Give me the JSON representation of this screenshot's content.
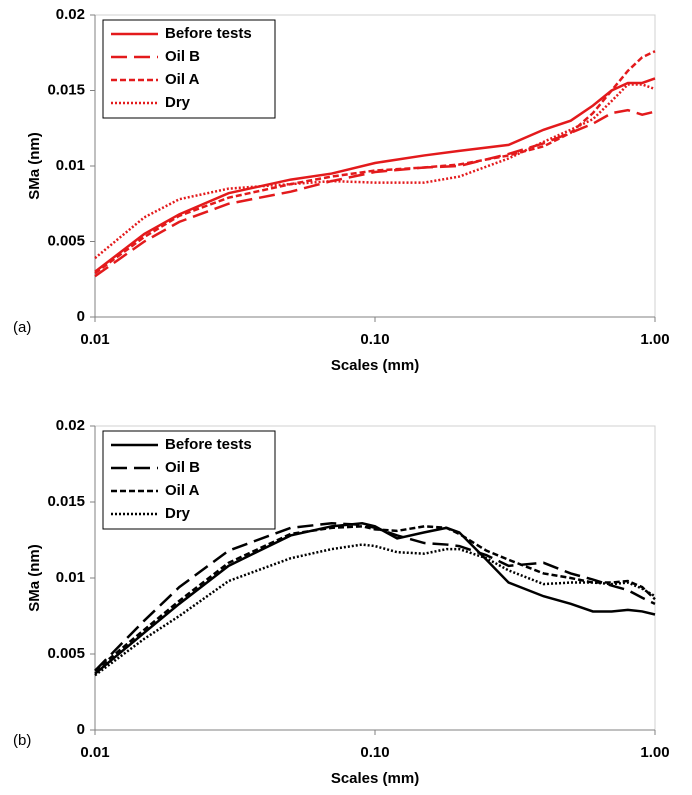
{
  "chart_data": [
    {
      "type": "line",
      "panel_label": "(a)",
      "x_label": "Scales (mm)",
      "y_label": "SMa (nm)",
      "x_scale": "log",
      "legend": "top-left",
      "grid": false,
      "x": [
        0.01,
        0.015,
        0.02,
        0.03,
        0.05,
        0.07,
        0.1,
        0.15,
        0.2,
        0.3,
        0.4,
        0.5,
        0.6,
        0.7,
        0.8,
        0.9,
        1.0
      ],
      "series": [
        {
          "name": "Before tests",
          "color": "#e31a1c",
          "style": "solid",
          "values": [
            0.003,
            0.0055,
            0.0068,
            0.0082,
            0.0091,
            0.0095,
            0.0102,
            0.0107,
            0.011,
            0.0114,
            0.0124,
            0.013,
            0.014,
            0.015,
            0.0155,
            0.0155,
            0.0158
          ]
        },
        {
          "name": "Oil B",
          "color": "#e31a1c",
          "style": "longdash",
          "values": [
            0.0027,
            0.005,
            0.0063,
            0.0075,
            0.0083,
            0.009,
            0.0096,
            0.0099,
            0.01,
            0.0108,
            0.0115,
            0.0122,
            0.0128,
            0.0135,
            0.0137,
            0.0134,
            0.0136
          ]
        },
        {
          "name": "Oil A",
          "color": "#e31a1c",
          "style": "dash",
          "values": [
            0.0029,
            0.0053,
            0.0067,
            0.0079,
            0.0088,
            0.0093,
            0.0097,
            0.0099,
            0.0101,
            0.0107,
            0.0113,
            0.0122,
            0.0135,
            0.015,
            0.0163,
            0.0172,
            0.0176
          ]
        },
        {
          "name": "Dry",
          "color": "#e31a1c",
          "style": "dot",
          "values": [
            0.0039,
            0.0066,
            0.0078,
            0.0085,
            0.0088,
            0.009,
            0.0089,
            0.0089,
            0.0093,
            0.0105,
            0.0116,
            0.0124,
            0.0131,
            0.0143,
            0.0154,
            0.0154,
            0.0151
          ]
        }
      ],
      "xlim": [
        0.01,
        1.0
      ],
      "xticks": [
        {
          "value": 0.01,
          "label": "0.01"
        },
        {
          "value": 0.1,
          "label": "0.10"
        },
        {
          "value": 1.0,
          "label": "1.00"
        }
      ],
      "ylim": [
        0,
        0.02
      ],
      "yticks": [
        0,
        0.005,
        0.01,
        0.015,
        0.02
      ]
    },
    {
      "type": "line",
      "panel_label": "(b)",
      "x_label": "Scales (mm)",
      "y_label": "SMa (nm)",
      "x_scale": "log",
      "legend": "top-left",
      "grid": false,
      "x": [
        0.01,
        0.015,
        0.02,
        0.03,
        0.05,
        0.07,
        0.09,
        0.1,
        0.12,
        0.15,
        0.18,
        0.2,
        0.25,
        0.3,
        0.4,
        0.5,
        0.6,
        0.7,
        0.8,
        0.9,
        1.0
      ],
      "series": [
        {
          "name": "Before tests",
          "color": "#000000",
          "style": "solid",
          "values": [
            0.0037,
            0.0064,
            0.0083,
            0.0108,
            0.0128,
            0.0134,
            0.0136,
            0.0134,
            0.0126,
            0.013,
            0.0133,
            0.013,
            0.0112,
            0.0097,
            0.0088,
            0.0083,
            0.0078,
            0.0078,
            0.0079,
            0.0078,
            0.0076
          ]
        },
        {
          "name": "Oil B",
          "color": "#000000",
          "style": "longdash",
          "values": [
            0.0039,
            0.0072,
            0.0094,
            0.0118,
            0.0133,
            0.0136,
            0.0135,
            0.0133,
            0.0128,
            0.0123,
            0.0122,
            0.0121,
            0.0115,
            0.0108,
            0.011,
            0.0103,
            0.0099,
            0.0095,
            0.0092,
            0.0087,
            0.0083
          ]
        },
        {
          "name": "Oil A",
          "color": "#000000",
          "style": "dash",
          "values": [
            0.0039,
            0.0066,
            0.0085,
            0.011,
            0.0129,
            0.0133,
            0.0134,
            0.0132,
            0.0131,
            0.0134,
            0.0133,
            0.0129,
            0.0118,
            0.0112,
            0.0103,
            0.01,
            0.0097,
            0.0097,
            0.0098,
            0.0094,
            0.0086
          ]
        },
        {
          "name": "Dry",
          "color": "#000000",
          "style": "dot",
          "values": [
            0.0036,
            0.006,
            0.0075,
            0.0098,
            0.0113,
            0.0119,
            0.0122,
            0.0121,
            0.0117,
            0.0116,
            0.0119,
            0.0119,
            0.0113,
            0.0105,
            0.0096,
            0.0097,
            0.0097,
            0.0096,
            0.0097,
            0.0093,
            0.0088
          ]
        }
      ],
      "xlim": [
        0.01,
        1.0
      ],
      "xticks": [
        {
          "value": 0.01,
          "label": "0.01"
        },
        {
          "value": 0.1,
          "label": "0.10"
        },
        {
          "value": 1.0,
          "label": "1.00"
        }
      ],
      "ylim": [
        0,
        0.02
      ],
      "yticks": [
        0,
        0.005,
        0.01,
        0.015,
        0.02
      ]
    }
  ]
}
